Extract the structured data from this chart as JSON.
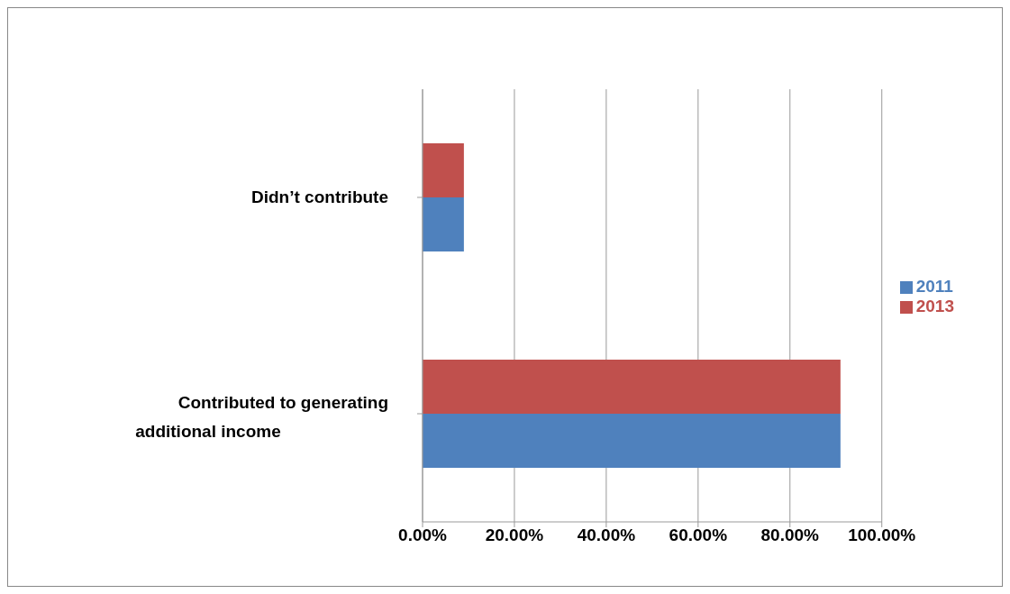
{
  "chart_data": {
    "type": "bar",
    "orientation": "horizontal",
    "categories": [
      "Didn’t contribute",
      "Contributed to generating additional income"
    ],
    "series": [
      {
        "name": "2013",
        "color": "#c0504d",
        "values": [
          9,
          91
        ]
      },
      {
        "name": "2011",
        "color": "#4f81bd",
        "values": [
          9,
          91
        ]
      }
    ],
    "xlim": [
      0,
      100
    ],
    "xticks": [
      {
        "value": 0,
        "label": "0.00%"
      },
      {
        "value": 20,
        "label": "20.00%"
      },
      {
        "value": 40,
        "label": "40.00%"
      },
      {
        "value": 60,
        "label": "60.00%"
      },
      {
        "value": 80,
        "label": "80.00%"
      },
      {
        "value": 100,
        "label": "100.00%"
      }
    ],
    "grid": "x",
    "legend": "right"
  }
}
